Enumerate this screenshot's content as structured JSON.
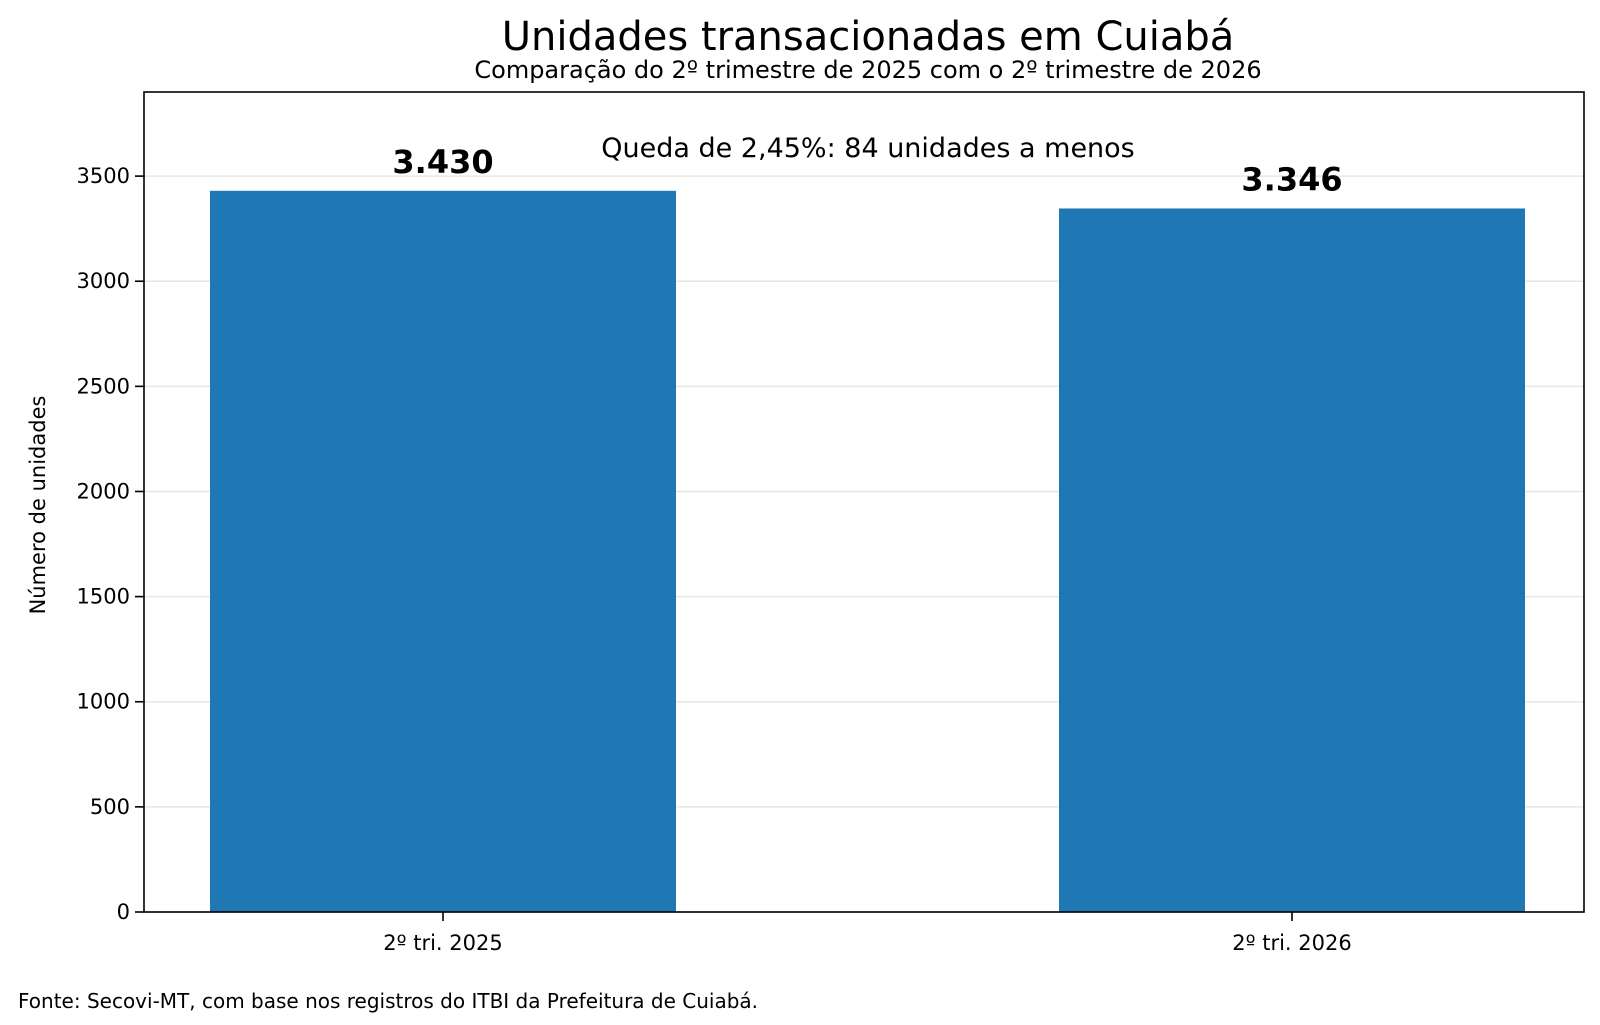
{
  "chart_data": {
    "type": "bar",
    "title": "Unidades transacionadas em Cuiabá",
    "subtitle": "Comparação do 2º trimestre de 2025 com o 2º trimestre de 2026",
    "xlabel": "",
    "ylabel": "Número de unidades",
    "categories": [
      "2º tri. 2025",
      "2º tri. 2026"
    ],
    "values": [
      3430,
      3346
    ],
    "data_labels": [
      "3.430",
      "3.346"
    ],
    "ylim": [
      0,
      3900
    ],
    "yticks": [
      0,
      500,
      1000,
      1500,
      2000,
      2500,
      3000,
      3500
    ],
    "ytick_labels": [
      "0",
      "500",
      "1000",
      "1500",
      "2000",
      "2500",
      "3000",
      "3500"
    ],
    "grid": "horizontal",
    "annotation": "Queda de 2,45%: 84 unidades a menos",
    "source": "Fonte: Secovi-MT, com base nos registros do ITBI da Prefeitura de Cuiabá.",
    "bar_color": "#1f77b4",
    "grid_color": "#e6e6e6"
  }
}
